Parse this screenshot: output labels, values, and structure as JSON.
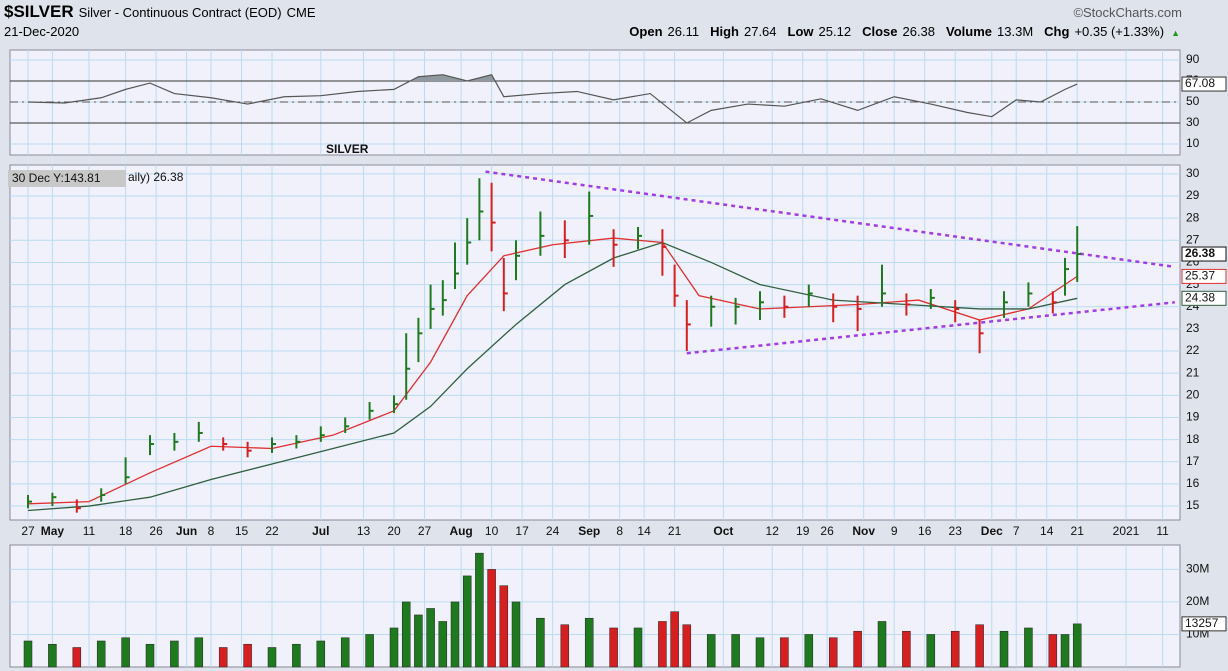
{
  "header": {
    "symbol": "$SILVER",
    "name": "Silver - Continuous Contract (EOD)",
    "exchange": "CME",
    "date": "21-Dec-2020",
    "source": "©StockCharts.com",
    "stats": [
      {
        "label": "Open",
        "value": "26.11"
      },
      {
        "label": "High",
        "value": "27.64"
      },
      {
        "label": "Low",
        "value": "25.12"
      },
      {
        "label": "Close",
        "value": "26.38"
      },
      {
        "label": "Volume",
        "value": "13.3M"
      },
      {
        "label": "Chg",
        "value": "+0.35 (+1.33%)"
      }
    ]
  },
  "chart_data": [
    {
      "type": "line",
      "color": "#555555",
      "fill": "#8f9aa0",
      "x": [
        0,
        6,
        12,
        16,
        20,
        24,
        30,
        36,
        42,
        48,
        54,
        60,
        64,
        68,
        72,
        76,
        78,
        84,
        90,
        96,
        102,
        108,
        112,
        118,
        124,
        130,
        136,
        142,
        148,
        154,
        158,
        162,
        166,
        170,
        172
      ],
      "values": [
        50,
        49,
        54,
        62,
        68,
        58,
        54,
        48,
        55,
        56,
        60,
        62,
        74,
        76,
        70,
        76,
        55,
        58,
        60,
        52,
        58,
        30,
        42,
        48,
        46,
        53,
        42,
        55,
        48,
        40,
        36,
        52,
        50,
        62,
        67.08
      ],
      "ylim": [
        -0.5,
        99.5
      ],
      "yticks": [
        10,
        30,
        50,
        70,
        90
      ],
      "xlim": [
        -2.95,
        188.85
      ],
      "ref_lines": [
        30,
        70
      ],
      "ref_dashed": 50
    },
    {
      "type": "ohlc",
      "annotation": "SILVER",
      "tooltip": "30 Dec Y:143.81",
      "legend_text": "aily) 26.38",
      "up_color": "#1f7a1f",
      "down_color": "#d42020",
      "x": [
        0,
        4,
        8,
        12,
        16,
        20,
        24,
        28,
        32,
        36,
        40,
        44,
        48,
        52,
        56,
        60,
        62,
        64,
        66,
        68,
        70,
        72,
        74,
        76,
        78,
        80,
        84,
        88,
        92,
        96,
        100,
        104,
        106,
        108,
        112,
        116,
        120,
        124,
        128,
        132,
        136,
        140,
        144,
        148,
        152,
        156,
        160,
        164,
        168,
        170,
        172
      ],
      "high": [
        15.5,
        15.6,
        15.3,
        15.8,
        17.2,
        18.2,
        18.3,
        18.8,
        18.1,
        17.9,
        18.1,
        18.2,
        18.6,
        19.0,
        19.7,
        20.0,
        22.8,
        23.5,
        25.0,
        25.2,
        26.9,
        28.0,
        29.8,
        29.6,
        26.2,
        27.0,
        28.3,
        27.9,
        29.2,
        27.5,
        27.6,
        27.5,
        25.9,
        24.3,
        24.5,
        24.4,
        24.7,
        24.5,
        25.0,
        24.6,
        24.5,
        25.9,
        24.6,
        24.8,
        24.3,
        23.4,
        24.7,
        25.1,
        24.7,
        26.2,
        27.64
      ],
      "low": [
        14.9,
        15.0,
        14.7,
        15.2,
        16.0,
        17.3,
        17.5,
        17.9,
        17.5,
        17.2,
        17.4,
        17.6,
        17.9,
        18.3,
        18.9,
        19.2,
        19.8,
        21.5,
        23.0,
        23.6,
        24.8,
        25.9,
        27.0,
        26.5,
        23.8,
        25.2,
        26.3,
        26.2,
        26.8,
        25.8,
        26.6,
        25.4,
        24.0,
        22.0,
        23.1,
        23.2,
        23.4,
        23.5,
        24.0,
        23.3,
        22.9,
        24.0,
        23.6,
        23.9,
        23.3,
        21.9,
        23.5,
        24.0,
        23.7,
        24.5,
        25.12
      ],
      "close": [
        15.2,
        15.4,
        14.9,
        15.5,
        16.3,
        17.8,
        17.9,
        18.3,
        17.8,
        17.5,
        17.8,
        17.9,
        18.2,
        18.6,
        19.3,
        19.6,
        21.2,
        22.8,
        23.9,
        24.3,
        25.5,
        26.9,
        28.3,
        27.8,
        24.6,
        26.3,
        27.2,
        27.0,
        28.1,
        26.8,
        27.2,
        26.7,
        24.5,
        23.2,
        24.0,
        24.0,
        24.2,
        24.0,
        24.6,
        24.0,
        23.9,
        24.6,
        24.1,
        24.4,
        23.9,
        22.8,
        24.2,
        24.6,
        24.2,
        25.7,
        26.38
      ],
      "series": [
        {
          "color": "#e03030",
          "x": [
            0,
            10,
            20,
            30,
            40,
            50,
            60,
            66,
            72,
            78,
            86,
            96,
            104,
            110,
            120,
            136,
            146,
            156,
            164,
            172
          ],
          "values": [
            15.1,
            15.2,
            16.5,
            17.7,
            17.6,
            18.2,
            19.3,
            21.5,
            24.5,
            26.3,
            26.8,
            27.1,
            26.9,
            24.5,
            23.9,
            24.1,
            24.3,
            23.4,
            23.9,
            25.37
          ]
        },
        {
          "color": "#2f5f3f",
          "x": [
            0,
            10,
            20,
            30,
            40,
            50,
            60,
            66,
            72,
            80,
            88,
            96,
            104,
            112,
            120,
            132,
            144,
            156,
            164,
            172
          ],
          "values": [
            14.8,
            15.0,
            15.4,
            16.2,
            16.9,
            17.6,
            18.3,
            19.5,
            21.2,
            23.2,
            25.0,
            26.2,
            26.9,
            26.0,
            25.0,
            24.3,
            24.1,
            23.9,
            23.9,
            24.38
          ]
        }
      ],
      "trendlines": [
        {
          "color": "#a23ce6",
          "x": [
            75,
            188
          ],
          "values": [
            30.1,
            25.8
          ]
        },
        {
          "color": "#a23ce6",
          "x": [
            108,
            188
          ],
          "values": [
            21.9,
            24.2
          ]
        }
      ],
      "ylim": [
        14.37,
        30.4
      ],
      "yticks": [
        15,
        16,
        17,
        18,
        19,
        20,
        21,
        22,
        23,
        24,
        25,
        26,
        27,
        28,
        29,
        30
      ],
      "xlim": [
        -2.95,
        188.85
      ],
      "xticks": [
        {
          "value": 0,
          "label": "27"
        },
        {
          "value": 4,
          "label": "May"
        },
        {
          "value": 10,
          "label": "11"
        },
        {
          "value": 16,
          "label": "18"
        },
        {
          "value": 21,
          "label": "26"
        },
        {
          "value": 26,
          "label": "Jun"
        },
        {
          "value": 30,
          "label": "8"
        },
        {
          "value": 35,
          "label": "15"
        },
        {
          "value": 40,
          "label": "22"
        },
        {
          "value": 48,
          "label": "Jul"
        },
        {
          "value": 55,
          "label": "13"
        },
        {
          "value": 60,
          "label": "20"
        },
        {
          "value": 65,
          "label": "27"
        },
        {
          "value": 71,
          "label": "Aug"
        },
        {
          "value": 76,
          "label": "10"
        },
        {
          "value": 81,
          "label": "17"
        },
        {
          "value": 86,
          "label": "24"
        },
        {
          "value": 92,
          "label": "Sep"
        },
        {
          "value": 97,
          "label": "8"
        },
        {
          "value": 101,
          "label": "14"
        },
        {
          "value": 106,
          "label": "21"
        },
        {
          "value": 114,
          "label": "Oct"
        },
        {
          "value": 122,
          "label": "12"
        },
        {
          "value": 127,
          "label": "19"
        },
        {
          "value": 131,
          "label": "26"
        },
        {
          "value": 137,
          "label": "Nov"
        },
        {
          "value": 142,
          "label": "9"
        },
        {
          "value": 147,
          "label": "16"
        },
        {
          "value": 152,
          "label": "23"
        },
        {
          "value": 158,
          "label": "Dec"
        },
        {
          "value": 162,
          "label": "7"
        },
        {
          "value": 167,
          "label": "14"
        },
        {
          "value": 172,
          "label": "21"
        },
        {
          "value": 180,
          "label": "2021"
        },
        {
          "value": 186,
          "label": "11"
        }
      ]
    },
    {
      "type": "bar",
      "x": [
        0,
        4,
        8,
        12,
        16,
        20,
        24,
        28,
        32,
        36,
        40,
        44,
        48,
        52,
        56,
        60,
        62,
        64,
        66,
        68,
        70,
        72,
        74,
        76,
        78,
        80,
        84,
        88,
        92,
        96,
        100,
        104,
        106,
        108,
        112,
        116,
        120,
        124,
        128,
        132,
        136,
        140,
        144,
        148,
        152,
        156,
        160,
        164,
        168,
        170,
        172
      ],
      "values": [
        8000000,
        7000000,
        6000000,
        8000000,
        9000000,
        7000000,
        8000000,
        9000000,
        6000000,
        7000000,
        6000000,
        7000000,
        8000000,
        9000000,
        10000000,
        12000000,
        20000000,
        16000000,
        18000000,
        14000000,
        20000000,
        28000000,
        35000000,
        30000000,
        25000000,
        20000000,
        15000000,
        13000000,
        15000000,
        12000000,
        12000000,
        14000000,
        17000000,
        13000000,
        10000000,
        10000000,
        9000000,
        9000000,
        10000000,
        9000000,
        11000000,
        14000000,
        11000000,
        10000000,
        11000000,
        13000000,
        11000000,
        12000000,
        10000000,
        10000000,
        13257000
      ],
      "value_labels": [
        null,
        null,
        null,
        null,
        null,
        null,
        null,
        null,
        null,
        null,
        null,
        null,
        null,
        null,
        null,
        null,
        null,
        null,
        null,
        null,
        null,
        null,
        null,
        null,
        null,
        null,
        null,
        null,
        null,
        null,
        null,
        null,
        null,
        null,
        null,
        null,
        null,
        null,
        null,
        null,
        null,
        null,
        null,
        null,
        null,
        null,
        null,
        null,
        null,
        null,
        "13257"
      ],
      "ylim": [
        0,
        37500000
      ],
      "yticks": [
        {
          "value": 10000000,
          "label": "10M"
        },
        {
          "value": 20000000,
          "label": "20M"
        },
        {
          "value": 30000000,
          "label": "30M"
        }
      ],
      "xlim": [
        -2.95,
        188.85
      ]
    }
  ]
}
